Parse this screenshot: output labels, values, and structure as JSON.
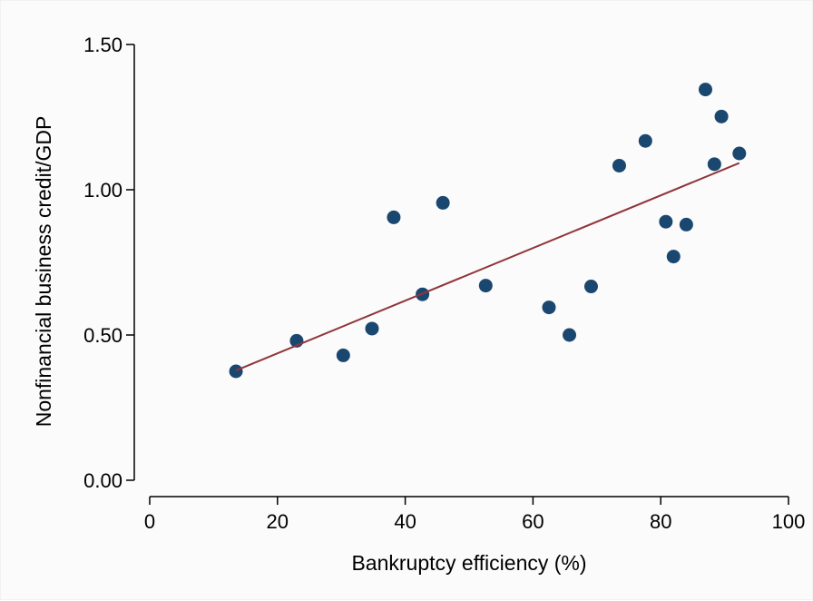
{
  "chart_data": {
    "type": "scatter",
    "title": "",
    "xlabel": "Bankruptcy efficiency (%)",
    "ylabel": "Nonfinancial business credit/GDP",
    "xlim": [
      0,
      100
    ],
    "ylim": [
      0,
      1.5
    ],
    "xticks": [
      0,
      20,
      40,
      60,
      80,
      100
    ],
    "xtick_labels": [
      "0",
      "20",
      "40",
      "60",
      "80",
      "100"
    ],
    "yticks": [
      0,
      0.5,
      1.0,
      1.5
    ],
    "ytick_labels": [
      "0.00",
      "0.50",
      "1.00",
      "1.50"
    ],
    "grid": false,
    "legend": "none",
    "points": [
      {
        "x": 13.5,
        "y": 0.375
      },
      {
        "x": 23.0,
        "y": 0.48
      },
      {
        "x": 30.3,
        "y": 0.43
      },
      {
        "x": 34.8,
        "y": 0.522
      },
      {
        "x": 38.2,
        "y": 0.905
      },
      {
        "x": 42.7,
        "y": 0.64
      },
      {
        "x": 45.9,
        "y": 0.955
      },
      {
        "x": 52.6,
        "y": 0.67
      },
      {
        "x": 62.5,
        "y": 0.595
      },
      {
        "x": 65.7,
        "y": 0.5
      },
      {
        "x": 69.1,
        "y": 0.667
      },
      {
        "x": 73.5,
        "y": 1.083
      },
      {
        "x": 77.6,
        "y": 1.168
      },
      {
        "x": 80.8,
        "y": 0.89
      },
      {
        "x": 82.0,
        "y": 0.77
      },
      {
        "x": 84.0,
        "y": 0.88
      },
      {
        "x": 87.0,
        "y": 1.345
      },
      {
        "x": 88.4,
        "y": 1.088
      },
      {
        "x": 89.5,
        "y": 1.252
      },
      {
        "x": 92.3,
        "y": 1.125
      }
    ],
    "fit_line": {
      "x": [
        13.5,
        92.3
      ],
      "y": [
        0.378,
        1.092
      ]
    },
    "colors": {
      "points": "#1a476f",
      "fit_line": "#90353b",
      "axis": "#000000"
    }
  }
}
